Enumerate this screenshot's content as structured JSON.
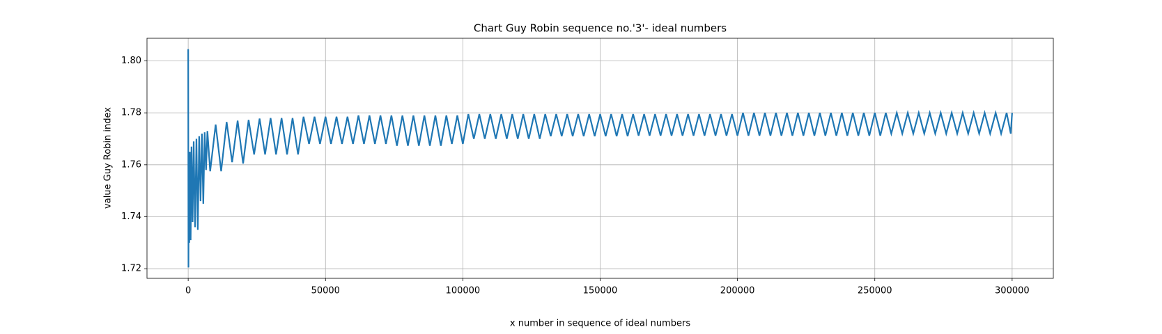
{
  "chart_data": {
    "type": "line",
    "title": "Chart Guy Robin sequence no.'3'- ideal numbers",
    "xlabel": "x number in sequence of ideal numbers",
    "ylabel": "value Guy Robin index",
    "xlim": [
      -15000,
      315000
    ],
    "ylim": [
      1.7163,
      1.8087
    ],
    "xticks": [
      0,
      50000,
      100000,
      150000,
      200000,
      250000,
      300000
    ],
    "yticks": [
      1.72,
      1.74,
      1.76,
      1.78,
      {
        "value": 1.8,
        "label": "1.80"
      }
    ],
    "grid": true,
    "x": [
      0,
      100,
      200,
      400,
      600,
      900,
      1200,
      1600,
      2000,
      2500,
      3000,
      3500,
      4000,
      4500,
      5000,
      5500,
      6000,
      6500,
      7000,
      8000,
      10000,
      12000,
      14000,
      16000,
      18000,
      20000,
      22000,
      24000,
      26000,
      28000,
      30000,
      32000,
      34000,
      36000,
      38000,
      40000,
      42000,
      44000,
      46000,
      48000,
      50000,
      52000,
      54000,
      56000,
      58000,
      60000,
      62000,
      64000,
      66000,
      68000,
      70000,
      72000,
      74000,
      76000,
      78000,
      80000,
      82000,
      84000,
      86000,
      88000,
      90000,
      92000,
      94000,
      96000,
      98000,
      100000,
      102000,
      104000,
      106000,
      108000,
      110000,
      112000,
      114000,
      116000,
      118000,
      120000,
      122000,
      124000,
      126000,
      128000,
      130000,
      132000,
      134000,
      136000,
      138000,
      140000,
      142000,
      144000,
      146000,
      148000,
      150000,
      152000,
      154000,
      156000,
      158000,
      160000,
      162000,
      164000,
      166000,
      168000,
      170000,
      172000,
      174000,
      176000,
      178000,
      180000,
      182000,
      184000,
      186000,
      188000,
      190000,
      192000,
      194000,
      196000,
      198000,
      200000,
      202000,
      204000,
      206000,
      208000,
      210000,
      212000,
      214000,
      216000,
      218000,
      220000,
      222000,
      224000,
      226000,
      228000,
      230000,
      232000,
      234000,
      236000,
      238000,
      240000,
      242000,
      244000,
      246000,
      248000,
      250000,
      252000,
      254000,
      256000,
      258000,
      260000,
      262000,
      264000,
      266000,
      268000,
      270000,
      272000,
      274000,
      276000,
      278000,
      280000,
      282000,
      284000,
      286000,
      288000,
      290000,
      292000,
      294000,
      296000,
      298000,
      299500,
      300000
    ],
    "series": [
      {
        "name": "Guy Robin index",
        "color": "#1f77b4",
        "values": [
          1.8045,
          1.7205,
          1.762,
          1.73,
          1.765,
          1.731,
          1.767,
          1.738,
          1.769,
          1.736,
          1.77,
          1.735,
          1.771,
          1.746,
          1.772,
          1.745,
          1.7725,
          1.758,
          1.773,
          1.7575,
          1.7755,
          1.7575,
          1.7765,
          1.761,
          1.777,
          1.7605,
          1.7773,
          1.764,
          1.7778,
          1.764,
          1.778,
          1.764,
          1.778,
          1.764,
          1.778,
          1.764,
          1.7785,
          1.768,
          1.7785,
          1.768,
          1.7785,
          1.768,
          1.7785,
          1.768,
          1.7785,
          1.768,
          1.779,
          1.768,
          1.779,
          1.768,
          1.779,
          1.768,
          1.779,
          1.7673,
          1.779,
          1.7673,
          1.779,
          1.7673,
          1.779,
          1.7673,
          1.779,
          1.7673,
          1.779,
          1.768,
          1.779,
          1.768,
          1.7795,
          1.77,
          1.7795,
          1.77,
          1.7795,
          1.77,
          1.7795,
          1.77,
          1.7795,
          1.77,
          1.7795,
          1.77,
          1.7795,
          1.77,
          1.7795,
          1.771,
          1.7795,
          1.771,
          1.7795,
          1.771,
          1.7795,
          1.771,
          1.7795,
          1.771,
          1.7795,
          1.771,
          1.7795,
          1.771,
          1.7795,
          1.771,
          1.7795,
          1.7712,
          1.7795,
          1.7712,
          1.7795,
          1.7712,
          1.7795,
          1.7712,
          1.7795,
          1.7712,
          1.7795,
          1.7712,
          1.7795,
          1.7712,
          1.7795,
          1.7712,
          1.7795,
          1.7712,
          1.7795,
          1.7712,
          1.78,
          1.7712,
          1.78,
          1.7712,
          1.78,
          1.7712,
          1.78,
          1.7712,
          1.78,
          1.7712,
          1.78,
          1.7712,
          1.78,
          1.7712,
          1.78,
          1.7712,
          1.78,
          1.7712,
          1.78,
          1.7712,
          1.78,
          1.7712,
          1.78,
          1.7712,
          1.78,
          1.7712,
          1.78,
          1.772,
          1.78,
          1.772,
          1.78,
          1.772,
          1.78,
          1.772,
          1.78,
          1.772,
          1.78,
          1.772,
          1.78,
          1.772,
          1.78,
          1.772,
          1.78,
          1.772,
          1.78,
          1.772,
          1.78,
          1.772,
          1.78,
          1.772,
          1.78
        ]
      }
    ]
  }
}
